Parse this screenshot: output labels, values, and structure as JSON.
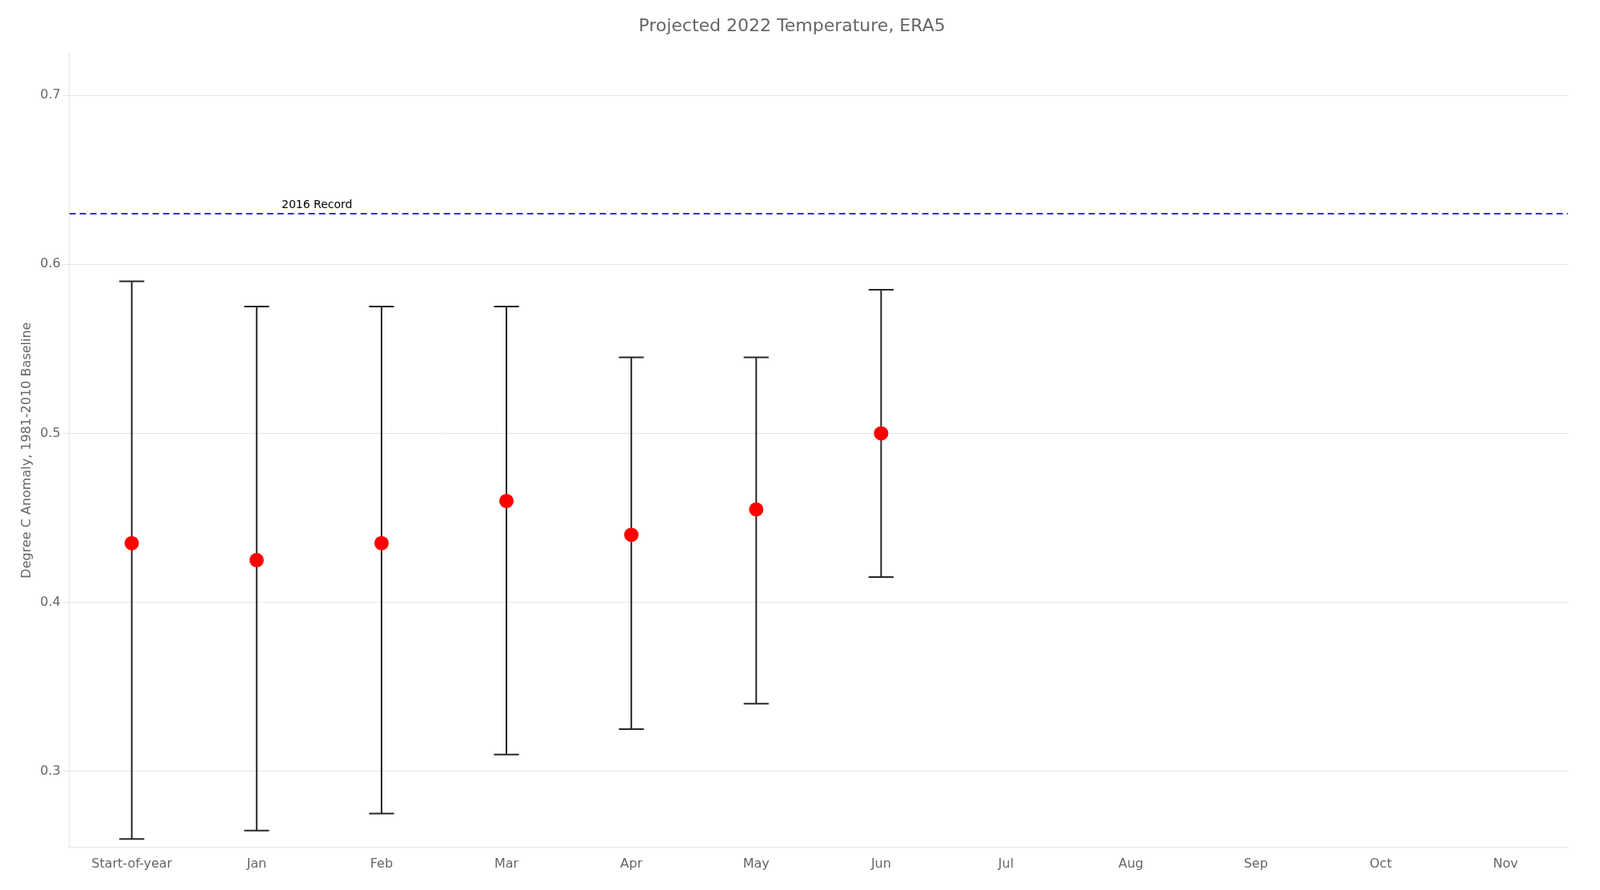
{
  "chart_data": {
    "type": "scatter",
    "title": "Projected 2022 Temperature, ERA5",
    "ylabel": "Degree C Anomaly, 1981-2010 Baseline",
    "categories": [
      "Start-of-year",
      "Jan",
      "Feb",
      "Mar",
      "Apr",
      "May",
      "Jun",
      "Jul",
      "Aug",
      "Sep",
      "Oct",
      "Nov"
    ],
    "values": [
      0.435,
      0.425,
      0.435,
      0.46,
      0.44,
      0.455,
      0.5,
      null,
      null,
      null,
      null,
      null
    ],
    "error_upper": [
      0.59,
      0.575,
      0.575,
      0.575,
      0.545,
      0.545,
      0.585,
      null,
      null,
      null,
      null,
      null
    ],
    "error_lower": [
      0.26,
      0.265,
      0.275,
      0.31,
      0.325,
      0.34,
      0.415,
      null,
      null,
      null,
      null,
      null
    ],
    "color": "#ff0000",
    "marker": "circle",
    "ylim": [
      0.255,
      0.725
    ],
    "yticks": [
      0.3,
      0.4,
      0.5,
      0.6,
      0.7
    ],
    "grid": true,
    "legend": false,
    "annotations": [
      {
        "value": 0.63,
        "label": "2016 Record",
        "color": "#3333cc",
        "line_style": "dashed"
      }
    ]
  }
}
